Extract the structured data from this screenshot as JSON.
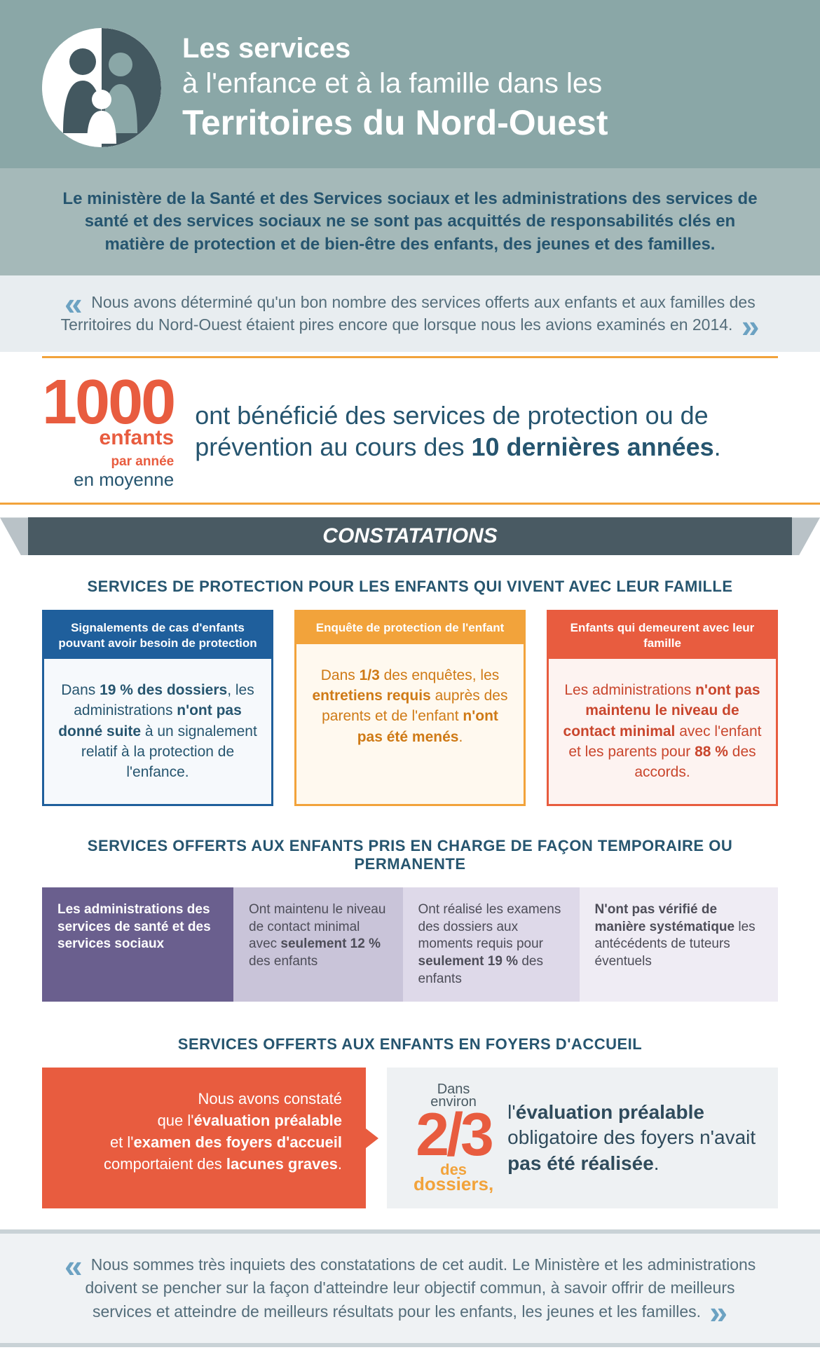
{
  "colors": {
    "header_bg": "#8aa7a7",
    "subintro_bg": "#a5b9b9",
    "dark_teal": "#26556f",
    "orange": "#f2a33b",
    "red": "#e85c3f",
    "slate": "#495a63",
    "purple": "#6a5f8e"
  },
  "header": {
    "line1": "Les services",
    "line2": "à l'enfance et à la famille dans les",
    "line3": "Territoires du Nord-Ouest"
  },
  "sub_intro": "Le ministère de la Santé et des Services sociaux et les administrations des services de santé et des services sociaux ne se sont pas acquittés de responsabilités clés en matière de protection et de bien-être des enfants, des jeunes et des familles.",
  "quote1": "Nous avons déterminé qu'un bon nombre des services offerts aux enfants et aux familles des Territoires du Nord-Ouest étaient pires encore que lorsque nous les avions examinés en 2014.",
  "stat": {
    "big_number": "1000",
    "enfants": "enfants",
    "par_annee": "par année",
    "moyenne": "en moyenne",
    "right_pre": "ont bénéficié des services de protection ou de prévention au cours des ",
    "right_bold": "10 dernières années",
    "right_post": "."
  },
  "ribbon": "CONSTATATIONS",
  "section1_title": "SERVICES DE PROTECTION POUR LES ENFANTS QUI VIVENT AVEC LEUR FAMILLE",
  "cards": [
    {
      "head": "Signalements de cas d'enfants pouvant avoir besoin de protection",
      "body_html": "Dans <b>19 % des dossiers</b>, les administrations <b>n'ont pas donné suite</b> à un signalement relatif à la protection de l'enfance."
    },
    {
      "head": "Enquête de protection de l'enfant",
      "body_html": "Dans <b>1/3</b> des enquêtes, les <b>entretiens requis</b> auprès des parents et de l'enfant <b>n'ont pas été menés</b>."
    },
    {
      "head": "Enfants qui demeurent avec leur famille",
      "body_html": "Les administrations <b>n'ont pas maintenu le niveau de contact minimal</b> avec l'enfant et les parents pour <b>88 %</b> des accords."
    }
  ],
  "section2_title": "SERVICES OFFERTS AUX ENFANTS PRIS EN CHARGE DE FAÇON TEMPORAIRE OU PERMANENTE",
  "bar4": {
    "b0": "Les administrations des services de santé et des services sociaux",
    "b1_html": "Ont maintenu le niveau de contact minimal avec <b>seulement 12 %</b> des enfants",
    "b2_html": "Ont réalisé les examens des dossiers aux moments requis pour <b>seulement 19 %</b> des enfants",
    "b3_html": "<b>N'ont pas vérifié de manière systématique</b> les antécédents de tuteurs éventuels"
  },
  "section3_title": "SERVICES OFFERTS AUX ENFANTS EN FOYERS D'ACCUEIL",
  "foyers": {
    "left_html": "Nous avons constaté<br>que l'<b>évaluation préalable</b><br>et l'<b>examen des foyers d'accueil</b><br>comportaient des <b>lacunes graves</b>.",
    "frac_top": "Dans environ",
    "frac_big": "2/3",
    "frac_des": "des",
    "frac_dos": "dossiers,",
    "right_html": "l'<b>évaluation préalable</b> obligatoire des foyers n'avait <b>pas été réalisée</b>."
  },
  "quote2": "Nous sommes très inquiets des constatations de cet audit. Le Ministère et les administrations doivent se pencher sur la façon d'atteindre leur objectif commun, à savoir offrir de meilleurs services et atteindre de meilleurs résultats pour les enfants, les jeunes et les familles."
}
